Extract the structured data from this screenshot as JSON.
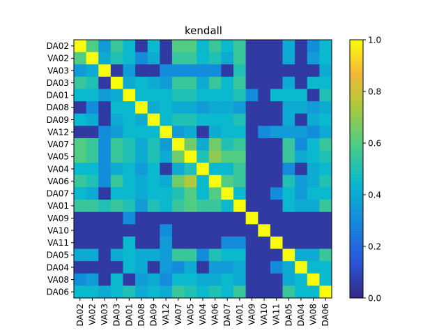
{
  "chart_data": {
    "type": "heatmap",
    "title": "kendall",
    "xlabel": "",
    "ylabel": "",
    "labels": [
      "DA02",
      "VA02",
      "VA03",
      "DA03",
      "DA01",
      "DA08",
      "DA09",
      "VA12",
      "VA07",
      "VA05",
      "VA04",
      "VA06",
      "DA07",
      "VA01",
      "VA09",
      "VA10",
      "VA11",
      "DA05",
      "DA04",
      "VA08",
      "DA06"
    ],
    "colorbar": {
      "min": 0.0,
      "max": 1.0,
      "ticks": [
        "0.0",
        "0.2",
        "0.4",
        "0.6",
        "0.8",
        "1.0"
      ],
      "colormap": "parula"
    },
    "matrix": [
      [
        1.0,
        0.6,
        0.35,
        0.55,
        0.45,
        0.05,
        0.45,
        0.05,
        0.6,
        0.6,
        0.45,
        0.55,
        0.45,
        0.55,
        0.05,
        0.05,
        0.05,
        0.4,
        0.05,
        0.3,
        0.45
      ],
      [
        0.6,
        1.0,
        0.4,
        0.5,
        0.45,
        0.3,
        0.4,
        0.05,
        0.55,
        0.55,
        0.45,
        0.5,
        0.4,
        0.55,
        0.05,
        0.05,
        0.05,
        0.4,
        0.05,
        0.35,
        0.45
      ],
      [
        0.35,
        0.4,
        1.0,
        0.05,
        0.35,
        0.05,
        0.05,
        0.3,
        0.3,
        0.3,
        0.3,
        0.3,
        0.05,
        0.5,
        0.05,
        0.05,
        0.05,
        0.05,
        0.05,
        0.05,
        0.4
      ],
      [
        0.55,
        0.5,
        0.05,
        1.0,
        0.4,
        0.45,
        0.4,
        0.35,
        0.55,
        0.55,
        0.4,
        0.55,
        0.45,
        0.55,
        0.05,
        0.05,
        0.05,
        0.4,
        0.05,
        0.45,
        0.45
      ],
      [
        0.45,
        0.45,
        0.35,
        0.4,
        1.0,
        0.45,
        0.45,
        0.45,
        0.5,
        0.5,
        0.45,
        0.45,
        0.45,
        0.5,
        0.3,
        0.05,
        0.45,
        0.45,
        0.45,
        0.05,
        0.5
      ],
      [
        0.05,
        0.3,
        0.05,
        0.45,
        0.45,
        1.0,
        0.4,
        0.45,
        0.4,
        0.4,
        0.35,
        0.4,
        0.4,
        0.35,
        0.05,
        0.05,
        0.05,
        0.4,
        0.4,
        0.35,
        0.4
      ],
      [
        0.45,
        0.4,
        0.05,
        0.4,
        0.45,
        0.4,
        1.0,
        0.45,
        0.5,
        0.5,
        0.45,
        0.45,
        0.45,
        0.5,
        0.05,
        0.05,
        0.05,
        0.4,
        0.05,
        0.4,
        0.45
      ],
      [
        0.05,
        0.05,
        0.3,
        0.35,
        0.45,
        0.45,
        0.45,
        1.0,
        0.35,
        0.4,
        0.05,
        0.4,
        0.45,
        0.45,
        0.05,
        0.3,
        0.35,
        0.35,
        0.35,
        0.3,
        0.4
      ],
      [
        0.6,
        0.55,
        0.3,
        0.55,
        0.5,
        0.4,
        0.5,
        0.35,
        1.0,
        0.65,
        0.4,
        0.65,
        0.5,
        0.55,
        0.05,
        0.05,
        0.05,
        0.55,
        0.3,
        0.45,
        0.55
      ],
      [
        0.6,
        0.55,
        0.3,
        0.55,
        0.5,
        0.4,
        0.5,
        0.4,
        0.65,
        1.0,
        0.5,
        0.7,
        0.6,
        0.6,
        0.05,
        0.05,
        0.05,
        0.55,
        0.4,
        0.45,
        0.5
      ],
      [
        0.45,
        0.45,
        0.3,
        0.4,
        0.45,
        0.35,
        0.45,
        0.05,
        0.4,
        0.5,
        1.0,
        0.45,
        0.45,
        0.55,
        0.05,
        0.05,
        0.05,
        0.3,
        0.05,
        0.4,
        0.45
      ],
      [
        0.55,
        0.5,
        0.3,
        0.55,
        0.45,
        0.4,
        0.45,
        0.4,
        0.65,
        0.75,
        0.45,
        1.0,
        0.6,
        0.55,
        0.05,
        0.05,
        0.05,
        0.5,
        0.35,
        0.4,
        0.5
      ],
      [
        0.45,
        0.4,
        0.05,
        0.45,
        0.45,
        0.4,
        0.45,
        0.45,
        0.5,
        0.6,
        0.45,
        0.6,
        1.0,
        0.45,
        0.05,
        0.05,
        0.3,
        0.45,
        0.35,
        0.45,
        0.45
      ],
      [
        0.55,
        0.55,
        0.5,
        0.55,
        0.5,
        0.35,
        0.5,
        0.45,
        0.55,
        0.6,
        0.55,
        0.55,
        0.45,
        1.0,
        0.05,
        0.05,
        0.05,
        0.45,
        0.4,
        0.4,
        0.55
      ],
      [
        0.05,
        0.05,
        0.05,
        0.05,
        0.3,
        0.05,
        0.05,
        0.05,
        0.05,
        0.05,
        0.05,
        0.05,
        0.05,
        0.05,
        1.0,
        0.05,
        0.05,
        0.05,
        0.05,
        0.05,
        0.05
      ],
      [
        0.05,
        0.05,
        0.05,
        0.05,
        0.05,
        0.05,
        0.05,
        0.3,
        0.05,
        0.05,
        0.05,
        0.05,
        0.05,
        0.05,
        0.05,
        1.0,
        0.05,
        0.05,
        0.05,
        0.05,
        0.05
      ],
      [
        0.05,
        0.05,
        0.05,
        0.05,
        0.45,
        0.05,
        0.05,
        0.35,
        0.05,
        0.05,
        0.05,
        0.05,
        0.3,
        0.3,
        0.05,
        0.05,
        1.0,
        0.05,
        0.05,
        0.05,
        0.05
      ],
      [
        0.4,
        0.4,
        0.05,
        0.4,
        0.45,
        0.4,
        0.4,
        0.35,
        0.55,
        0.55,
        0.3,
        0.5,
        0.45,
        0.45,
        0.05,
        0.05,
        0.05,
        1.0,
        0.4,
        0.4,
        0.55
      ],
      [
        0.05,
        0.05,
        0.05,
        0.05,
        0.45,
        0.4,
        0.05,
        0.35,
        0.3,
        0.4,
        0.05,
        0.35,
        0.35,
        0.4,
        0.05,
        0.05,
        0.3,
        0.4,
        1.0,
        0.45,
        0.45
      ],
      [
        0.3,
        0.35,
        0.05,
        0.45,
        0.05,
        0.35,
        0.4,
        0.3,
        0.45,
        0.45,
        0.4,
        0.4,
        0.45,
        0.4,
        0.05,
        0.05,
        0.05,
        0.4,
        0.45,
        1.0,
        0.45
      ],
      [
        0.45,
        0.45,
        0.4,
        0.45,
        0.5,
        0.4,
        0.45,
        0.4,
        0.55,
        0.5,
        0.45,
        0.5,
        0.45,
        0.55,
        0.05,
        0.05,
        0.05,
        0.55,
        0.45,
        0.45,
        1.0
      ]
    ]
  }
}
